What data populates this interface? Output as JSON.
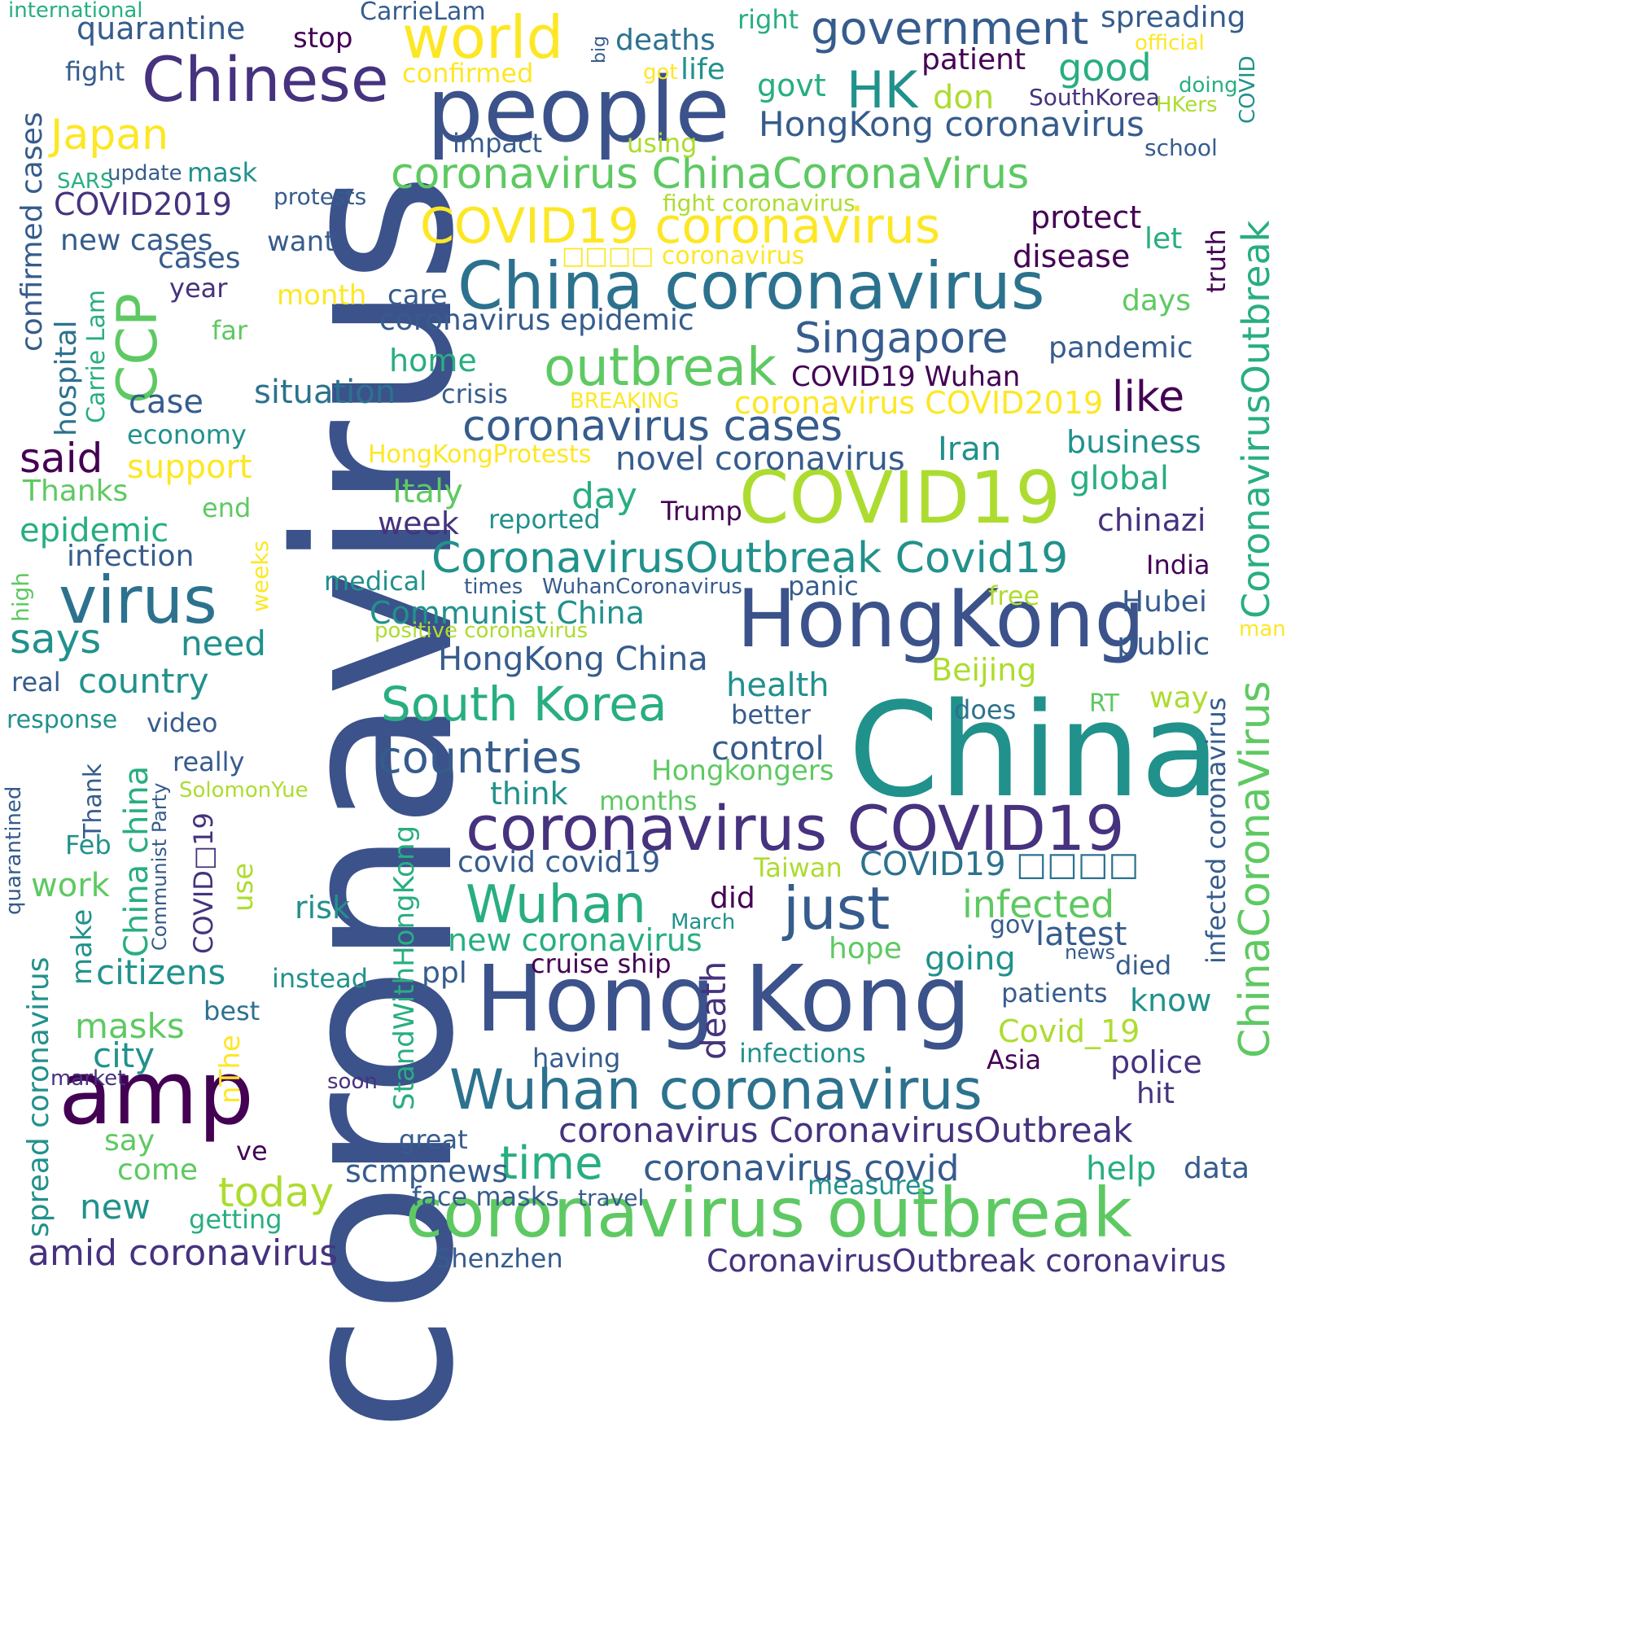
{
  "palette": {
    "c1": "#46327e",
    "c2": "#3b528b",
    "c3": "#365c8d",
    "c4": "#2c728e",
    "c5": "#21918c",
    "c6": "#28ae80",
    "c7": "#5ec962",
    "c8": "#addc30",
    "c9": "#fde725",
    "c10": "#440154"
  },
  "words": [
    {
      "id": "w1",
      "text": "coronavirus",
      "c": "c2"
    },
    {
      "id": "w2",
      "text": "China",
      "c": "c5"
    },
    {
      "id": "w3",
      "text": "HongKong",
      "c": "c2"
    },
    {
      "id": "w4",
      "text": "Hong Kong",
      "c": "c2"
    },
    {
      "id": "w5",
      "text": "people",
      "c": "c2"
    },
    {
      "id": "w6",
      "text": "COVID19",
      "c": "c8"
    },
    {
      "id": "w7",
      "text": "amp",
      "c": "c10"
    },
    {
      "id": "w8",
      "text": "China coronavirus",
      "c": "c4"
    },
    {
      "id": "w9",
      "text": "coronavirus outbreak",
      "c": "c7"
    },
    {
      "id": "w10",
      "text": "coronavirus COVID19",
      "c": "c1"
    },
    {
      "id": "w11",
      "text": "Chinese",
      "c": "c1"
    },
    {
      "id": "w12",
      "text": "world",
      "c": "c9"
    },
    {
      "id": "w13",
      "text": "virus",
      "c": "c4"
    },
    {
      "id": "w14",
      "text": "CCP",
      "c": "c7"
    },
    {
      "id": "w15",
      "text": "COVID19 coronavirus",
      "c": "c9"
    },
    {
      "id": "w16",
      "text": "Wuhan coronavirus",
      "c": "c4"
    },
    {
      "id": "w17",
      "text": "outbreak",
      "c": "c7"
    },
    {
      "id": "w18",
      "text": "Wuhan",
      "c": "c6"
    },
    {
      "id": "w19",
      "text": "just",
      "c": "c3"
    },
    {
      "id": "w20",
      "text": "HK",
      "c": "c5"
    },
    {
      "id": "w21",
      "text": "government",
      "c": "c3"
    },
    {
      "id": "w22",
      "text": "coronavirus ChinaCoronaVirus",
      "c": "c7"
    },
    {
      "id": "w23",
      "text": "ChinaCoronaVirus",
      "c": "c7"
    },
    {
      "id": "w24",
      "text": "CoronavirusOutbreak",
      "c": "c6"
    },
    {
      "id": "w25",
      "text": "South Korea",
      "c": "c6"
    },
    {
      "id": "w26",
      "text": "coronavirus cases",
      "c": "c3"
    },
    {
      "id": "w27",
      "text": "CoronavirusOutbreak Covid19",
      "c": "c5"
    },
    {
      "id": "w28",
      "text": "Singapore",
      "c": "c3"
    },
    {
      "id": "w29",
      "text": "countries",
      "c": "c3"
    },
    {
      "id": "w30",
      "text": "time",
      "c": "c6"
    },
    {
      "id": "w31",
      "text": "like",
      "c": "c10"
    },
    {
      "id": "w32",
      "text": "Japan",
      "c": "c9"
    },
    {
      "id": "w33",
      "text": "coronavirus CoronavirusOutbreak",
      "c": "c1"
    },
    {
      "id": "w34",
      "text": "HongKong coronavirus",
      "c": "c3"
    },
    {
      "id": "w35",
      "text": "coronavirus covid",
      "c": "c3"
    },
    {
      "id": "w36",
      "text": "today",
      "c": "c8"
    },
    {
      "id": "w37",
      "text": "says",
      "c": "c5"
    },
    {
      "id": "w38",
      "text": "said",
      "c": "c10"
    },
    {
      "id": "w39",
      "text": "amid coronavirus",
      "c": "c1"
    },
    {
      "id": "w40",
      "text": "infected",
      "c": "c7"
    },
    {
      "id": "w41",
      "text": "confirmed cases",
      "c": "c3"
    },
    {
      "id": "w42",
      "text": "good",
      "c": "c6"
    },
    {
      "id": "w43",
      "text": "StandWithHongKong",
      "c": "c6"
    },
    {
      "id": "w44",
      "text": "new",
      "c": "c5"
    },
    {
      "id": "w45",
      "text": "masks",
      "c": "c7"
    },
    {
      "id": "w46",
      "text": "Italy",
      "c": "c7"
    },
    {
      "id": "w47",
      "text": "country",
      "c": "c5"
    },
    {
      "id": "w48",
      "text": "quarantine",
      "c": "c3"
    },
    {
      "id": "w49",
      "text": "COVID2019",
      "c": "c1"
    },
    {
      "id": "w50",
      "text": "citizens",
      "c": "c5"
    },
    {
      "id": "w51",
      "text": "Communist China",
      "c": "c5"
    },
    {
      "id": "w52",
      "text": "HongKong China",
      "c": "c3"
    },
    {
      "id": "w53",
      "text": "epidemic",
      "c": "c6"
    },
    {
      "id": "w54",
      "text": "coronavirus epidemic",
      "c": "c3"
    },
    {
      "id": "w55",
      "text": "case",
      "c": "c3"
    },
    {
      "id": "w56",
      "text": "COVID19 Wuhan",
      "c": "c10"
    },
    {
      "id": "w57",
      "text": "death",
      "c": "c1"
    },
    {
      "id": "w58",
      "text": "going",
      "c": "c5"
    },
    {
      "id": "w59",
      "text": "latest",
      "c": "c3"
    },
    {
      "id": "w60",
      "text": "help",
      "c": "c6"
    },
    {
      "id": "w61",
      "text": "Iran",
      "c": "c5"
    },
    {
      "id": "w62",
      "text": "business",
      "c": "c5"
    },
    {
      "id": "w63",
      "text": "global",
      "c": "c6"
    },
    {
      "id": "w64",
      "text": "chinazi",
      "c": "c1"
    },
    {
      "id": "w65",
      "text": "police",
      "c": "c1"
    },
    {
      "id": "w66",
      "text": "new cases",
      "c": "c3"
    },
    {
      "id": "w67",
      "text": "cases",
      "c": "c3"
    },
    {
      "id": "w68",
      "text": "need",
      "c": "c5"
    },
    {
      "id": "w69",
      "text": "situation",
      "c": "c4"
    },
    {
      "id": "w70",
      "text": "novel coronavirus",
      "c": "c3"
    },
    {
      "id": "w71",
      "text": "day",
      "c": "c6"
    },
    {
      "id": "w72",
      "text": "week",
      "c": "c1"
    },
    {
      "id": "w73",
      "text": "health",
      "c": "c5"
    },
    {
      "id": "w74",
      "text": "control",
      "c": "c3"
    },
    {
      "id": "w75",
      "text": "Hubei",
      "c": "c3"
    },
    {
      "id": "w76",
      "text": "public",
      "c": "c3"
    },
    {
      "id": "w77",
      "text": "Beijing",
      "c": "c8"
    },
    {
      "id": "w78",
      "text": "coronavirus COVID2019",
      "c": "c9"
    },
    {
      "id": "w79",
      "text": "protect",
      "c": "c10"
    },
    {
      "id": "w80",
      "text": "disease",
      "c": "c10"
    },
    {
      "id": "w81",
      "text": "pandemic",
      "c": "c3"
    },
    {
      "id": "w82",
      "text": "patient",
      "c": "c10"
    },
    {
      "id": "w83",
      "text": "deaths",
      "c": "c4"
    },
    {
      "id": "w84",
      "text": "life",
      "c": "c5"
    },
    {
      "id": "w85",
      "text": "govt",
      "c": "c6"
    },
    {
      "id": "w86",
      "text": "don",
      "c": "c8"
    },
    {
      "id": "w87",
      "text": "spreading",
      "c": "c3"
    },
    {
      "id": "w88",
      "text": "home",
      "c": "c6"
    },
    {
      "id": "w89",
      "text": "city",
      "c": "c5"
    },
    {
      "id": "w90",
      "text": "risk",
      "c": "c5"
    },
    {
      "id": "w91",
      "text": "work",
      "c": "c7"
    },
    {
      "id": "w92",
      "text": "Covid_19",
      "c": "c8"
    },
    {
      "id": "w93",
      "text": "know",
      "c": "c5"
    },
    {
      "id": "w94",
      "text": "covid covid19",
      "c": "c3"
    },
    {
      "id": "w95",
      "text": "new coronavirus",
      "c": "c6"
    },
    {
      "id": "w96",
      "text": "hope",
      "c": "c7"
    },
    {
      "id": "w97",
      "text": "hit",
      "c": "c1"
    },
    {
      "id": "w98",
      "text": "data",
      "c": "c3"
    },
    {
      "id": "w99",
      "text": "scmpnews",
      "c": "c3"
    },
    {
      "id": "w100",
      "text": "Thanks",
      "c": "c7"
    },
    {
      "id": "w101",
      "text": "infection",
      "c": "c3"
    },
    {
      "id": "w102",
      "text": "support",
      "c": "c9"
    },
    {
      "id": "w103",
      "text": "Hongkongers",
      "c": "c7"
    },
    {
      "id": "w104",
      "text": "think",
      "c": "c5"
    },
    {
      "id": "w105",
      "text": "ppl",
      "c": "c3"
    },
    {
      "id": "w106",
      "text": "say",
      "c": "c7"
    },
    {
      "id": "w107",
      "text": "come",
      "c": "c7"
    },
    {
      "id": "w108",
      "text": "spread coronavirus",
      "c": "c5"
    },
    {
      "id": "w109",
      "text": "China china",
      "c": "c6"
    },
    {
      "id": "w110",
      "text": "CarrieLam",
      "c": "c3"
    },
    {
      "id": "w111",
      "text": "stop",
      "c": "c10"
    },
    {
      "id": "w112",
      "text": "fight",
      "c": "c3"
    },
    {
      "id": "w113",
      "text": "confirmed",
      "c": "c9"
    },
    {
      "id": "w114",
      "text": "impact",
      "c": "c3"
    },
    {
      "id": "w115",
      "text": "using",
      "c": "c8"
    },
    {
      "id": "w116",
      "text": "SouthKorea",
      "c": "c1"
    },
    {
      "id": "w117",
      "text": "school",
      "c": "c3"
    },
    {
      "id": "w118",
      "text": "COVID",
      "c": "c5"
    },
    {
      "id": "w119",
      "text": "update",
      "c": "c3"
    },
    {
      "id": "w120",
      "text": "mask",
      "c": "c5"
    },
    {
      "id": "w121",
      "text": "protests",
      "c": "c3"
    },
    {
      "id": "w122",
      "text": "fight coronavirus",
      "c": "c8"
    },
    {
      "id": "w123",
      "text": "want",
      "c": "c3"
    },
    {
      "id": "w124",
      "text": "let",
      "c": "c6"
    },
    {
      "id": "w125",
      "text": "truth",
      "c": "c10"
    },
    {
      "id": "w126",
      "text": "month",
      "c": "c9"
    },
    {
      "id": "w127",
      "text": "care",
      "c": "c3"
    },
    {
      "id": "w128",
      "text": "days",
      "c": "c7"
    },
    {
      "id": "w129",
      "text": "year",
      "c": "c1"
    },
    {
      "id": "w130",
      "text": "far",
      "c": "c7"
    },
    {
      "id": "w131",
      "text": "crisis",
      "c": "c3"
    },
    {
      "id": "w132",
      "text": "BREAKING",
      "c": "c9"
    },
    {
      "id": "w133",
      "text": "economy",
      "c": "c5"
    },
    {
      "id": "w134",
      "text": "HongKongProtests",
      "c": "c9"
    },
    {
      "id": "w135",
      "text": "reported",
      "c": "c5"
    },
    {
      "id": "w136",
      "text": "Trump",
      "c": "c10"
    },
    {
      "id": "w137",
      "text": "end",
      "c": "c7"
    },
    {
      "id": "w138",
      "text": "India",
      "c": "c10"
    },
    {
      "id": "w139",
      "text": "medical",
      "c": "c5"
    },
    {
      "id": "w140",
      "text": "times",
      "c": "c3"
    },
    {
      "id": "w141",
      "text": "WuhanCoronavirus",
      "c": "c3"
    },
    {
      "id": "w142",
      "text": "panic",
      "c": "c3"
    },
    {
      "id": "w143",
      "text": "free",
      "c": "c8"
    },
    {
      "id": "w144",
      "text": "positive coronavirus",
      "c": "c8"
    },
    {
      "id": "w145",
      "text": "man",
      "c": "c9"
    },
    {
      "id": "w146",
      "text": "real",
      "c": "c3"
    },
    {
      "id": "w147",
      "text": "response",
      "c": "c5"
    },
    {
      "id": "w148",
      "text": "video",
      "c": "c3"
    },
    {
      "id": "w149",
      "text": "really",
      "c": "c3"
    },
    {
      "id": "w150",
      "text": "does",
      "c": "c4"
    },
    {
      "id": "w151",
      "text": "better",
      "c": "c3"
    },
    {
      "id": "w152",
      "text": "way",
      "c": "c8"
    },
    {
      "id": "w153",
      "text": "RT",
      "c": "c7"
    },
    {
      "id": "w154",
      "text": "months",
      "c": "c7"
    },
    {
      "id": "w155",
      "text": "SolomonYue",
      "c": "c8"
    },
    {
      "id": "w156",
      "text": "Feb",
      "c": "c5"
    },
    {
      "id": "w157",
      "text": "Taiwan",
      "c": "c8"
    },
    {
      "id": "w158",
      "text": "did",
      "c": "c10"
    },
    {
      "id": "w159",
      "text": "March",
      "c": "c5"
    },
    {
      "id": "w160",
      "text": "gov",
      "c": "c3"
    },
    {
      "id": "w161",
      "text": "news",
      "c": "c3"
    },
    {
      "id": "w162",
      "text": "died",
      "c": "c3"
    },
    {
      "id": "w163",
      "text": "instead",
      "c": "c5"
    },
    {
      "id": "w164",
      "text": "cruise ship",
      "c": "c10"
    },
    {
      "id": "w165",
      "text": "patients",
      "c": "c3"
    },
    {
      "id": "w166",
      "text": "best",
      "c": "c4"
    },
    {
      "id": "w167",
      "text": "having",
      "c": "c3"
    },
    {
      "id": "w168",
      "text": "infections",
      "c": "c5"
    },
    {
      "id": "w169",
      "text": "Asia",
      "c": "c10"
    },
    {
      "id": "w170",
      "text": "market",
      "c": "c1"
    },
    {
      "id": "w171",
      "text": "soon",
      "c": "c1"
    },
    {
      "id": "w172",
      "text": "great",
      "c": "c3"
    },
    {
      "id": "w173",
      "text": "ve",
      "c": "c10"
    },
    {
      "id": "w174",
      "text": "face masks",
      "c": "c3"
    },
    {
      "id": "w175",
      "text": "travel",
      "c": "c3"
    },
    {
      "id": "w176",
      "text": "measures",
      "c": "c5"
    },
    {
      "id": "w177",
      "text": "getting",
      "c": "c6"
    },
    {
      "id": "w178",
      "text": "Shenzhen",
      "c": "c3"
    },
    {
      "id": "w179",
      "text": "CoronavirusOutbreak coronavirus",
      "c": "c1"
    },
    {
      "id": "w180",
      "text": "international",
      "c": "c6"
    },
    {
      "id": "w181",
      "text": "right",
      "c": "c6"
    },
    {
      "id": "w182",
      "text": "official",
      "c": "c9"
    },
    {
      "id": "w183",
      "text": "got",
      "c": "c9"
    },
    {
      "id": "w184",
      "text": "big",
      "c": "c3"
    },
    {
      "id": "w185",
      "text": "doing",
      "c": "c6"
    },
    {
      "id": "w186",
      "text": "HKers",
      "c": "c8"
    },
    {
      "id": "w187",
      "text": "SARS",
      "c": "c6"
    },
    {
      "id": "w188",
      "text": "hospital",
      "c": "c4"
    },
    {
      "id": "w189",
      "text": "Carrie Lam",
      "c": "c6"
    },
    {
      "id": "w190",
      "text": "weeks",
      "c": "c9"
    },
    {
      "id": "w191",
      "text": "high",
      "c": "c7"
    },
    {
      "id": "w192",
      "text": "Thank",
      "c": "c3"
    },
    {
      "id": "w193",
      "text": "Communist Party",
      "c": "c3"
    },
    {
      "id": "w194",
      "text": "COVID□19",
      "c": "c1"
    },
    {
      "id": "w195",
      "text": "quarantined",
      "c": "c3"
    },
    {
      "id": "w196",
      "text": "make",
      "c": "c5"
    },
    {
      "id": "w197",
      "text": "use",
      "c": "c8"
    },
    {
      "id": "w198",
      "text": "nThe",
      "c": "c9"
    },
    {
      "id": "w199",
      "text": "infected coronavirus",
      "c": "c3"
    },
    {
      "id": "w200",
      "text": "□□□□ coronavirus",
      "c": "c9"
    },
    {
      "id": "w201",
      "text": "COVID19 □□□□",
      "c": "c4"
    }
  ]
}
